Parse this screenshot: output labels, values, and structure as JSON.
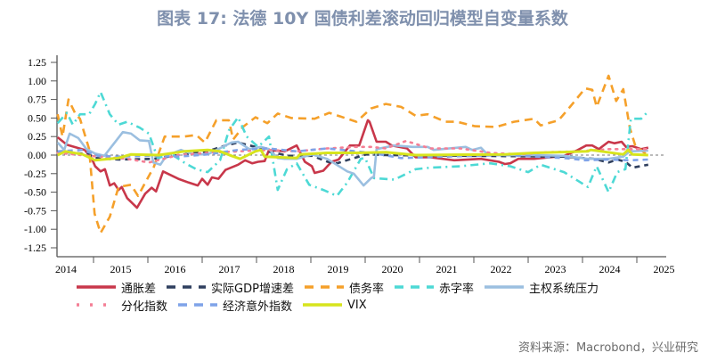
{
  "title": "图表 17: 法德 10Y 国债利差滚动回归模型自变量系数",
  "source": "资料来源：Macrobond，兴业研究",
  "chart_data": {
    "type": "line",
    "title": "图表 17: 法德 10Y 国债利差滚动回归模型自变量系数",
    "xlabel": "",
    "ylabel": "",
    "x_unit": "year",
    "xlim": [
      2014.33,
      2025.55
    ],
    "ylim": [
      -1.25,
      1.25
    ],
    "yticks": [
      "1.25",
      "1.00",
      "0.75",
      "0.50",
      "0.25",
      "0.00",
      "-0.25",
      "-0.50",
      "-0.75",
      "-1.00",
      "-1.25"
    ],
    "xticks": [
      "2014",
      "2015",
      "2016",
      "2017",
      "2018",
      "2019",
      "2020",
      "2021",
      "2022",
      "2023",
      "2024",
      "2025"
    ],
    "zero_line": true,
    "grid": false,
    "legend_position": "bottom",
    "series": [
      {
        "name": "通胀差",
        "color": "#c8374a",
        "style": "solid",
        "x": [
          2014.34,
          2014.51,
          2014.84,
          2014.97,
          2015.03,
          2015.13,
          2015.21,
          2015.3,
          2015.38,
          2015.46,
          2015.52,
          2015.62,
          2015.8,
          2015.95,
          2016.07,
          2016.15,
          2016.28,
          2016.39,
          2016.56,
          2016.75,
          2016.92,
          2017.0,
          2017.1,
          2017.18,
          2017.3,
          2017.43,
          2017.66,
          2017.79,
          2017.92,
          2018.03,
          2018.15,
          2018.23,
          2018.52,
          2018.74,
          2018.89,
          2019.02,
          2019.07,
          2019.23,
          2019.38,
          2019.51,
          2019.72,
          2019.89,
          2020.05,
          2020.08,
          2020.21,
          2020.38,
          2020.49,
          2020.77,
          2020.93,
          2021.2,
          2021.64,
          2022.13,
          2022.46,
          2022.57,
          2022.67,
          2022.82,
          2023.11,
          2023.66,
          2023.89,
          2024.07,
          2024.18,
          2024.3,
          2024.48,
          2024.59,
          2024.72,
          2024.8,
          2024.92,
          2025.08,
          2025.21
        ],
        "y": [
          0.24,
          0.14,
          0.07,
          -0.05,
          -0.15,
          -0.22,
          -0.19,
          -0.41,
          -0.38,
          -0.47,
          -0.43,
          -0.58,
          -0.71,
          -0.52,
          -0.44,
          -0.49,
          -0.22,
          -0.26,
          -0.32,
          -0.37,
          -0.41,
          -0.32,
          -0.4,
          -0.3,
          -0.32,
          -0.2,
          -0.13,
          -0.07,
          -0.11,
          -0.09,
          -0.08,
          0.07,
          0.05,
          0.13,
          -0.09,
          -0.15,
          -0.24,
          -0.21,
          -0.09,
          -0.06,
          0.13,
          0.13,
          0.47,
          0.45,
          0.18,
          0.18,
          0.13,
          0.09,
          -0.03,
          -0.03,
          -0.07,
          -0.05,
          -0.09,
          -0.12,
          -0.11,
          -0.05,
          -0.05,
          -0.01,
          0.06,
          0.13,
          0.13,
          0.08,
          0.18,
          0.16,
          0.18,
          0.11,
          0.12,
          0.08,
          0.1
        ]
      },
      {
        "name": "实际GDP增速差",
        "color": "#2f3f5e",
        "style": "dash",
        "x": [
          2014.34,
          2014.92,
          2015.03,
          2015.46,
          2016.11,
          2016.56,
          2017.1,
          2017.43,
          2017.66,
          2017.98,
          2018.2,
          2018.59,
          2019.03,
          2019.31,
          2019.48,
          2019.8,
          2020.02,
          2020.38,
          2023.66,
          2024.21,
          2024.48,
          2024.64,
          2024.79,
          2024.92,
          2025.21
        ],
        "y": [
          0.05,
          0.01,
          -0.04,
          -0.06,
          -0.05,
          0.0,
          0.05,
          0.13,
          0.17,
          0.11,
          0.05,
          -0.01,
          -0.01,
          -0.09,
          -0.11,
          -0.04,
          0.01,
          0.0,
          -0.02,
          -0.05,
          -0.1,
          -0.06,
          -0.09,
          -0.17,
          -0.13
        ]
      },
      {
        "name": "债务率",
        "color": "#f5a02a",
        "style": "longdash",
        "x": [
          2014.34,
          2014.43,
          2014.54,
          2014.67,
          2014.75,
          2014.92,
          2015.02,
          2015.13,
          2015.3,
          2015.46,
          2015.69,
          2015.82,
          2016.11,
          2016.31,
          2016.67,
          2016.89,
          2017.05,
          2017.26,
          2017.49,
          2017.57,
          2017.75,
          2017.98,
          2018.2,
          2018.39,
          2018.64,
          2019.07,
          2019.34,
          2019.84,
          2020.11,
          2020.38,
          2020.66,
          2020.93,
          2021.15,
          2021.48,
          2021.69,
          2022.02,
          2022.41,
          2022.74,
          2023.11,
          2023.23,
          2023.56,
          2023.77,
          2024.05,
          2024.18,
          2024.26,
          2024.48,
          2024.62,
          2024.75,
          2024.87,
          2024.97,
          2025.21
        ],
        "y": [
          0.55,
          0.25,
          0.75,
          0.55,
          0.49,
          0.08,
          -0.79,
          -1.05,
          -0.83,
          -0.43,
          -0.4,
          -0.55,
          -0.16,
          0.25,
          0.25,
          0.27,
          0.17,
          0.47,
          0.47,
          0.21,
          0.38,
          0.51,
          0.43,
          0.56,
          0.5,
          0.49,
          0.57,
          0.45,
          0.63,
          0.69,
          0.65,
          0.53,
          0.55,
          0.45,
          0.45,
          0.39,
          0.38,
          0.45,
          0.49,
          0.4,
          0.47,
          0.65,
          0.9,
          0.88,
          0.65,
          1.07,
          0.73,
          0.89,
          0.37,
          0.13,
          -0.01
        ]
      },
      {
        "name": "赤字率",
        "color": "#4dd9d5",
        "style": "dashdot",
        "x": [
          2014.34,
          2014.51,
          2014.62,
          2014.75,
          2014.92,
          2015.03,
          2015.13,
          2015.3,
          2015.46,
          2015.62,
          2015.85,
          2016.02,
          2016.18,
          2016.44,
          2016.69,
          2016.89,
          2017.1,
          2017.33,
          2017.49,
          2017.66,
          2017.82,
          2018.03,
          2018.23,
          2018.39,
          2018.56,
          2018.74,
          2018.97,
          2019.23,
          2019.48,
          2019.67,
          2019.92,
          2020.0,
          2020.16,
          2020.54,
          2020.93,
          2021.2,
          2021.75,
          2022.3,
          2022.67,
          2023.0,
          2023.23,
          2023.66,
          2024.1,
          2024.26,
          2024.48,
          2024.64,
          2024.79,
          2024.89,
          2025.08,
          2025.21
        ],
        "y": [
          0.43,
          0.57,
          0.41,
          0.55,
          0.55,
          0.69,
          0.85,
          0.55,
          0.41,
          0.45,
          0.37,
          0.29,
          -0.04,
          0.01,
          -0.11,
          -0.19,
          -0.23,
          -0.07,
          0.33,
          0.51,
          0.25,
          0.11,
          0.25,
          -0.47,
          -0.19,
          -0.11,
          -0.4,
          -0.47,
          -0.55,
          -0.37,
          -0.05,
          -0.04,
          -0.31,
          -0.33,
          -0.19,
          -0.17,
          -0.15,
          -0.11,
          -0.15,
          -0.23,
          -0.13,
          -0.23,
          -0.43,
          -0.15,
          -0.5,
          -0.23,
          -0.19,
          0.49,
          0.49,
          0.59
        ]
      },
      {
        "name": "主权系统压力",
        "color": "#9bbfe0",
        "style": "solid",
        "x": [
          2014.34,
          2014.46,
          2014.56,
          2014.72,
          2014.87,
          2015.03,
          2015.2,
          2015.54,
          2015.69,
          2015.85,
          2016.02,
          2016.1,
          2016.23,
          2016.34,
          2016.61,
          2016.84,
          2017.1,
          2017.54,
          2017.66,
          2017.87,
          2018.08,
          2018.23,
          2018.39,
          2018.52,
          2018.74,
          2019.02,
          2019.3,
          2019.67,
          2019.79,
          2019.97,
          2020.11,
          2020.16,
          2020.21,
          2020.54,
          2020.87,
          2021.15,
          2021.26,
          2021.85,
          2021.97,
          2022.13,
          2022.25,
          2022.57,
          2023.11,
          2023.66,
          2024.1,
          2024.48,
          2024.75,
          2024.87,
          2025.21
        ],
        "y": [
          0.17,
          0.07,
          0.29,
          0.23,
          0.08,
          0.02,
          -0.01,
          0.31,
          0.29,
          0.2,
          0.19,
          -0.1,
          -0.13,
          -0.01,
          0.07,
          0.01,
          0.01,
          0.17,
          0.18,
          0.08,
          0.11,
          0.08,
          -0.04,
          -0.05,
          -0.05,
          0.01,
          -0.05,
          -0.22,
          -0.25,
          -0.41,
          -0.31,
          -0.29,
          0.08,
          0.13,
          0.11,
          0.11,
          0.07,
          0.11,
          0.07,
          0.1,
          0.01,
          0.0,
          0.0,
          -0.01,
          -0.05,
          -0.05,
          -0.02,
          0.05,
          0.06
        ]
      },
      {
        "name": "分化指数",
        "color": "#f47f95",
        "style": "dot",
        "x": [
          2014.34,
          2014.92,
          2015.62,
          2016.02,
          2016.56,
          2017.1,
          2017.66,
          2018.2,
          2018.74,
          2019.3,
          2019.84,
          2020.11,
          2020.38,
          2020.75,
          2021.2,
          2021.75,
          2022.3,
          2022.84,
          2023.39,
          2023.93,
          2024.48,
          2025.21
        ],
        "y": [
          0.03,
          -0.01,
          -0.05,
          -0.1,
          0.0,
          0.03,
          0.05,
          0.07,
          0.05,
          0.09,
          0.11,
          0.11,
          0.09,
          0.19,
          0.09,
          0.09,
          0.03,
          0.01,
          0.04,
          0.05,
          0.08,
          0.08
        ]
      },
      {
        "name": "经济意外指数",
        "color": "#7fa3e8",
        "style": "dash",
        "x": [
          2014.34,
          2014.8,
          2015.08,
          2015.46,
          2016.02,
          2016.56,
          2017.1,
          2017.66,
          2018.2,
          2018.74,
          2019.3,
          2019.84,
          2020.11,
          2020.66,
          2021.48,
          2022.57,
          2023.66,
          2024.05,
          2024.48,
          2024.87,
          2025.21
        ],
        "y": [
          0.05,
          0.07,
          -0.01,
          -0.02,
          -0.01,
          -0.02,
          0.01,
          0.07,
          0.09,
          0.05,
          0.09,
          0.05,
          0.03,
          -0.04,
          -0.02,
          0.0,
          -0.04,
          -0.07,
          -0.06,
          -0.07,
          -0.06
        ]
      },
      {
        "name": "VIX",
        "color": "#d7e41d",
        "style": "solid",
        "x": [
          2014.34,
          2014.48,
          2014.8,
          2015.03,
          2015.46,
          2015.69,
          2016.2,
          2016.67,
          2017.1,
          2017.33,
          2017.54,
          2017.7,
          2017.98,
          2018.08,
          2018.15,
          2018.74,
          2018.8,
          2019.3,
          2019.84,
          2020.38,
          2020.93,
          2022.57,
          2023.11,
          2024.1,
          2024.15,
          2024.75,
          2024.84,
          2024.92,
          2025.21
        ],
        "y": [
          0.0,
          0.05,
          0.01,
          -0.07,
          -0.04,
          0.01,
          0.0,
          0.05,
          0.07,
          0.05,
          -0.01,
          -0.05,
          0.05,
          0.07,
          -0.02,
          -0.04,
          0.01,
          0.03,
          0.03,
          0.04,
          0.0,
          0.01,
          0.03,
          0.05,
          0.07,
          0.01,
          0.07,
          0.01,
          0.0
        ]
      }
    ]
  }
}
